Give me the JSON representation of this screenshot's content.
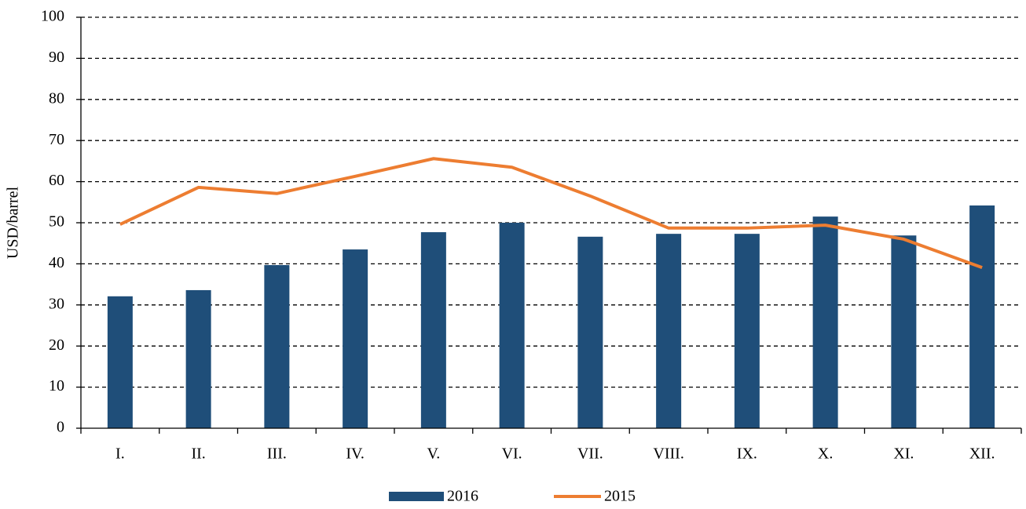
{
  "chart_data": {
    "type": "bar",
    "y_label": "USD/barrel",
    "categories": [
      "I.",
      "II.",
      "III.",
      "IV.",
      "V.",
      "VI.",
      "VII.",
      "VIII.",
      "IX.",
      "X.",
      "XI.",
      "XII."
    ],
    "series": [
      {
        "name": "2016",
        "type": "bar",
        "color": "#1f4e79",
        "values": [
          32.1,
          33.6,
          39.7,
          43.5,
          47.7,
          50.0,
          46.6,
          47.3,
          47.3,
          51.5,
          46.9,
          54.2
        ]
      },
      {
        "name": "2015",
        "type": "line",
        "color": "#ed7d31",
        "values": [
          49.6,
          58.6,
          57.1,
          61.3,
          65.6,
          63.5,
          56.5,
          48.7,
          48.7,
          49.4,
          46.0,
          39.1
        ]
      }
    ],
    "ylim": [
      0,
      100
    ],
    "yticks": [
      0,
      10,
      20,
      30,
      40,
      50,
      60,
      70,
      80,
      90,
      100
    ],
    "grid": true,
    "legend": "bottom"
  }
}
